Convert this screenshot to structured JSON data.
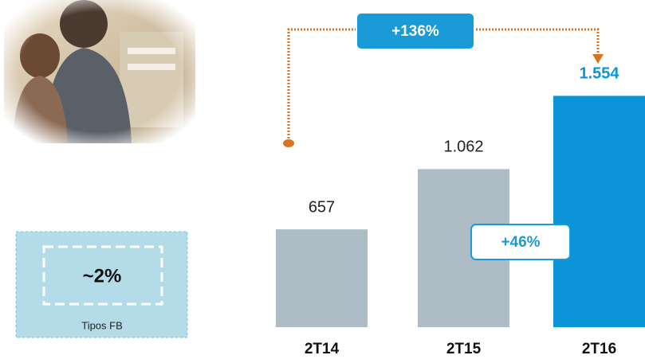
{
  "chart_data": {
    "type": "bar",
    "categories": [
      "2T14",
      "2T15",
      "2T16"
    ],
    "values": [
      657,
      1062,
      1554
    ],
    "value_labels": [
      "657",
      "1.062",
      "1.554"
    ],
    "colors": [
      "#adbcc5",
      "#adbcc5",
      "#0b95d8"
    ],
    "annotations": [
      "+136%",
      "+46%"
    ]
  },
  "side_box": {
    "value": "~2%",
    "label": "Tipos FB"
  }
}
